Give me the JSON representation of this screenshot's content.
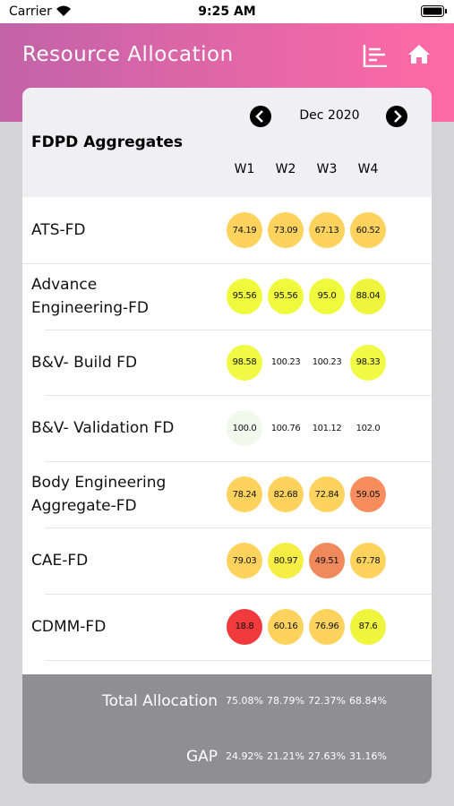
{
  "status_bar": {
    "carrier": "Carrier",
    "time": "9:25 AM"
  },
  "header": {
    "title": "Resource Allocation"
  },
  "table": {
    "month": "Dec 2020",
    "title": "FDPD Aggregates",
    "weeks": [
      "W1",
      "W2",
      "W3",
      "W4"
    ],
    "rows": [
      {
        "name": "ATS-FD",
        "cells": [
          {
            "text": "74.19",
            "color": "#fdd35e"
          },
          {
            "text": "73.09",
            "color": "#fdd35e"
          },
          {
            "text": "67.13",
            "color": "#fdd35e"
          },
          {
            "text": "60.52",
            "color": "#fdd35e"
          }
        ]
      },
      {
        "name": "Advance\nEngineering-FD",
        "cells": [
          {
            "text": "95.56",
            "color": "#effa3c"
          },
          {
            "text": "95.56",
            "color": "#effa3c"
          },
          {
            "text": "95.0",
            "color": "#effa3c"
          },
          {
            "text": "88.04",
            "color": "#eff43c"
          }
        ]
      },
      {
        "name": "B&V- Build FD",
        "cells": [
          {
            "text": "98.58",
            "color": "#f0fa44"
          },
          {
            "text": "100.23",
            "color": null
          },
          {
            "text": "100.23",
            "color": null
          },
          {
            "text": "98.33",
            "color": "#f0fa44"
          }
        ]
      },
      {
        "name": "B&V- Validation FD",
        "cells": [
          {
            "text": "100.0",
            "color": "#f1f8ec"
          },
          {
            "text": "100.76",
            "color": null
          },
          {
            "text": "101.12",
            "color": null
          },
          {
            "text": "102.0",
            "color": null
          }
        ]
      },
      {
        "name": "Body Engineering\nAggregate-FD",
        "cells": [
          {
            "text": "78.24",
            "color": "#fdd35e"
          },
          {
            "text": "82.68",
            "color": "#fdd35e"
          },
          {
            "text": "72.84",
            "color": "#fdd35e"
          },
          {
            "text": "59.05",
            "color": "#f78c5c"
          }
        ]
      },
      {
        "name": "CAE-FD",
        "cells": [
          {
            "text": "79.03",
            "color": "#fdd35e"
          },
          {
            "text": "80.97",
            "color": "#f6ee44"
          },
          {
            "text": "49.51",
            "color": "#f0895c"
          },
          {
            "text": "67.78",
            "color": "#fdd35e"
          }
        ]
      },
      {
        "name": "CDMM-FD",
        "cells": [
          {
            "text": "18.8",
            "color": "#f03a3b"
          },
          {
            "text": "60.16",
            "color": "#fdd35e"
          },
          {
            "text": "76.96",
            "color": "#fdd35e"
          },
          {
            "text": "87.6",
            "color": "#eff43c"
          }
        ]
      }
    ]
  },
  "footer": {
    "rows": [
      {
        "label": "Total Allocation",
        "values": [
          "75.08%",
          "78.79%",
          "72.37%",
          "68.84%"
        ]
      },
      {
        "label": "GAP",
        "values": [
          "24.92%",
          "21.21%",
          "27.63%",
          "31.16%"
        ]
      }
    ]
  }
}
